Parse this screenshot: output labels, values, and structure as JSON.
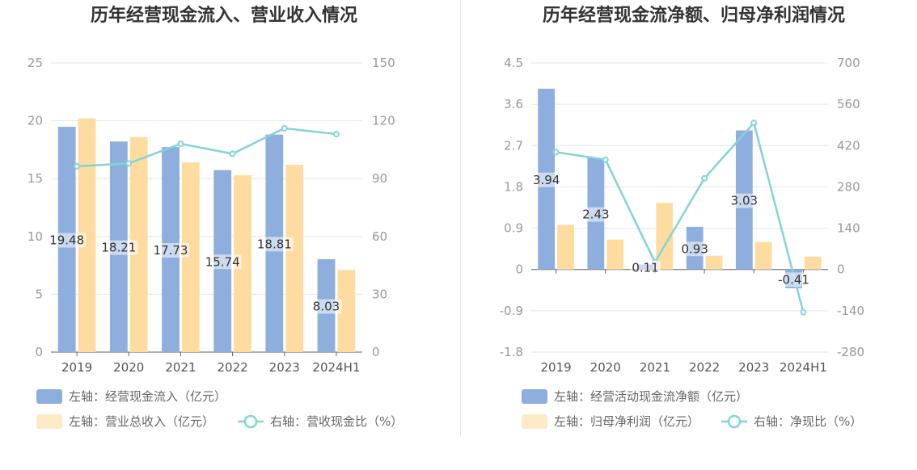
{
  "chart_data": [
    {
      "type": "bar",
      "title": "历年经营现金流入、营业收入情况",
      "categories": [
        "2019",
        "2020",
        "2021",
        "2022",
        "2023",
        "2024H1"
      ],
      "left_axis": {
        "ticks": [
          "0",
          "5",
          "10",
          "15",
          "20",
          "25"
        ],
        "ylim": [
          0,
          25
        ]
      },
      "right_axis": {
        "ticks": [
          "0",
          "30",
          "60",
          "90",
          "120",
          "150"
        ],
        "ylim": [
          0,
          150
        ]
      },
      "series": [
        {
          "name": "左轴：经营现金流入（亿元）",
          "axis": "left",
          "kind": "bar",
          "color": "#8eaedd",
          "values": [
            19.48,
            18.21,
            17.73,
            15.74,
            18.81,
            8.03
          ],
          "labels": [
            "19.48",
            "18.21",
            "17.73",
            "15.74",
            "18.81",
            "8.03"
          ]
        },
        {
          "name": "左轴：营业总收入（亿元）",
          "axis": "left",
          "kind": "bar",
          "color": "#fedc9f",
          "values": [
            20.2,
            18.6,
            16.4,
            15.3,
            16.2,
            7.1
          ]
        },
        {
          "name": "右轴：营收现金比（%）",
          "axis": "right",
          "kind": "line",
          "color": "#84d3d7",
          "values": [
            96.4,
            97.9,
            108.1,
            102.9,
            116.1,
            113.1
          ]
        }
      ],
      "grid": true,
      "legend": "bottom-left"
    },
    {
      "type": "bar",
      "title": "历年经营现金流净额、归母净利润情况",
      "categories": [
        "2019",
        "2020",
        "2021",
        "2022",
        "2023",
        "2024H1"
      ],
      "left_axis": {
        "ticks": [
          "-1.8",
          "-0.9",
          "0",
          "0.9",
          "1.8",
          "2.7",
          "3.6",
          "4.5"
        ],
        "ylim": [
          -1.8,
          4.5
        ]
      },
      "right_axis": {
        "ticks": [
          "-280",
          "-140",
          "0",
          "140",
          "280",
          "420",
          "560",
          "700"
        ],
        "ylim": [
          -280,
          700
        ]
      },
      "series": [
        {
          "name": "左轴：经营活动现金流净额（亿元）",
          "axis": "left",
          "kind": "bar",
          "color": "#8eaedd",
          "values": [
            3.94,
            2.43,
            0.11,
            0.93,
            3.03,
            -0.41
          ],
          "labels": [
            "3.94",
            "2.43",
            "0.11",
            "0.93",
            "3.03",
            "-0.41"
          ]
        },
        {
          "name": "左轴：归母净利润（亿元）",
          "axis": "left",
          "kind": "bar",
          "color": "#fedc9f",
          "values": [
            0.97,
            0.65,
            1.45,
            0.3,
            0.6,
            0.28
          ]
        },
        {
          "name": "右轴：净现比（%）",
          "axis": "right",
          "kind": "line",
          "color": "#84d3d7",
          "values": [
            398,
            372,
            25,
            309,
            497,
            -145
          ]
        }
      ],
      "grid": true,
      "legend": "bottom-left"
    }
  ]
}
